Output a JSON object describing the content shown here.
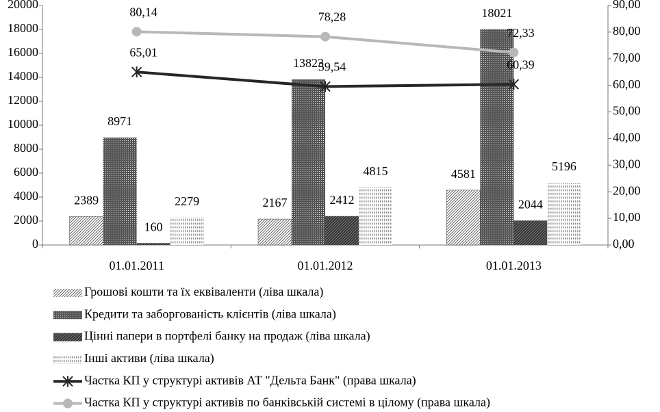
{
  "chart_data": {
    "type": "bar",
    "categories": [
      "01.01.2011",
      "01.01.2012",
      "01.01.2013"
    ],
    "ylim": [
      0,
      20000
    ],
    "yticks": [
      0,
      2000,
      4000,
      6000,
      8000,
      10000,
      12000,
      14000,
      16000,
      18000,
      20000
    ],
    "y2lim": [
      0,
      90
    ],
    "y2ticks": [
      {
        "value": 0,
        "label": "0,00"
      },
      {
        "value": 10,
        "label": "10,00"
      },
      {
        "value": 20,
        "label": "20,00"
      },
      {
        "value": 30,
        "label": "30,00"
      },
      {
        "value": 40,
        "label": "40,00"
      },
      {
        "value": 50,
        "label": "50,00"
      },
      {
        "value": 60,
        "label": "60,00"
      },
      {
        "value": 70,
        "label": "70,00"
      },
      {
        "value": 80,
        "label": "80,00"
      },
      {
        "value": 90,
        "label": "90,00"
      }
    ],
    "grid": false,
    "legend": "bottom",
    "series": [
      {
        "name": "Грошові кошти та їх еквіваленти (ліва шкала)",
        "type": "bar",
        "pattern": "light-diagonal",
        "color": "#555555",
        "values": [
          2389,
          2167,
          4581
        ]
      },
      {
        "name": "Кредити та заборгованість клієнтів (ліва шкала)",
        "type": "bar",
        "pattern": "dark-dotted",
        "color": "#555555",
        "values": [
          8971,
          13823,
          18021
        ]
      },
      {
        "name": "Цінні папери в портфелі банку на продаж (ліва шкала)",
        "type": "bar",
        "pattern": "dark-diagonal",
        "color": "#333333",
        "values": [
          160,
          2412,
          2044
        ]
      },
      {
        "name": "Інші активи (ліва шкала)",
        "type": "bar",
        "pattern": "light-vertical",
        "color": "#888888",
        "values": [
          2279,
          4815,
          5196
        ]
      },
      {
        "name": "Частка КП у структурі активів АТ \"Дельта Банк\" (права шкала)",
        "type": "line",
        "axis": "y2",
        "marker": "x",
        "color": "#262626",
        "values": [
          65.01,
          59.54,
          60.39
        ],
        "value_labels": [
          "65,01",
          "59,54",
          "60,39"
        ]
      },
      {
        "name": "Частка КП у структурі активів по банківській системі в цілому (права шкала)",
        "type": "line",
        "axis": "y2",
        "marker": "circle",
        "color": "#b8b8b8",
        "values": [
          80.14,
          78.28,
          72.33
        ],
        "value_labels": [
          "80,14",
          "78,28",
          "72,33"
        ]
      }
    ]
  }
}
